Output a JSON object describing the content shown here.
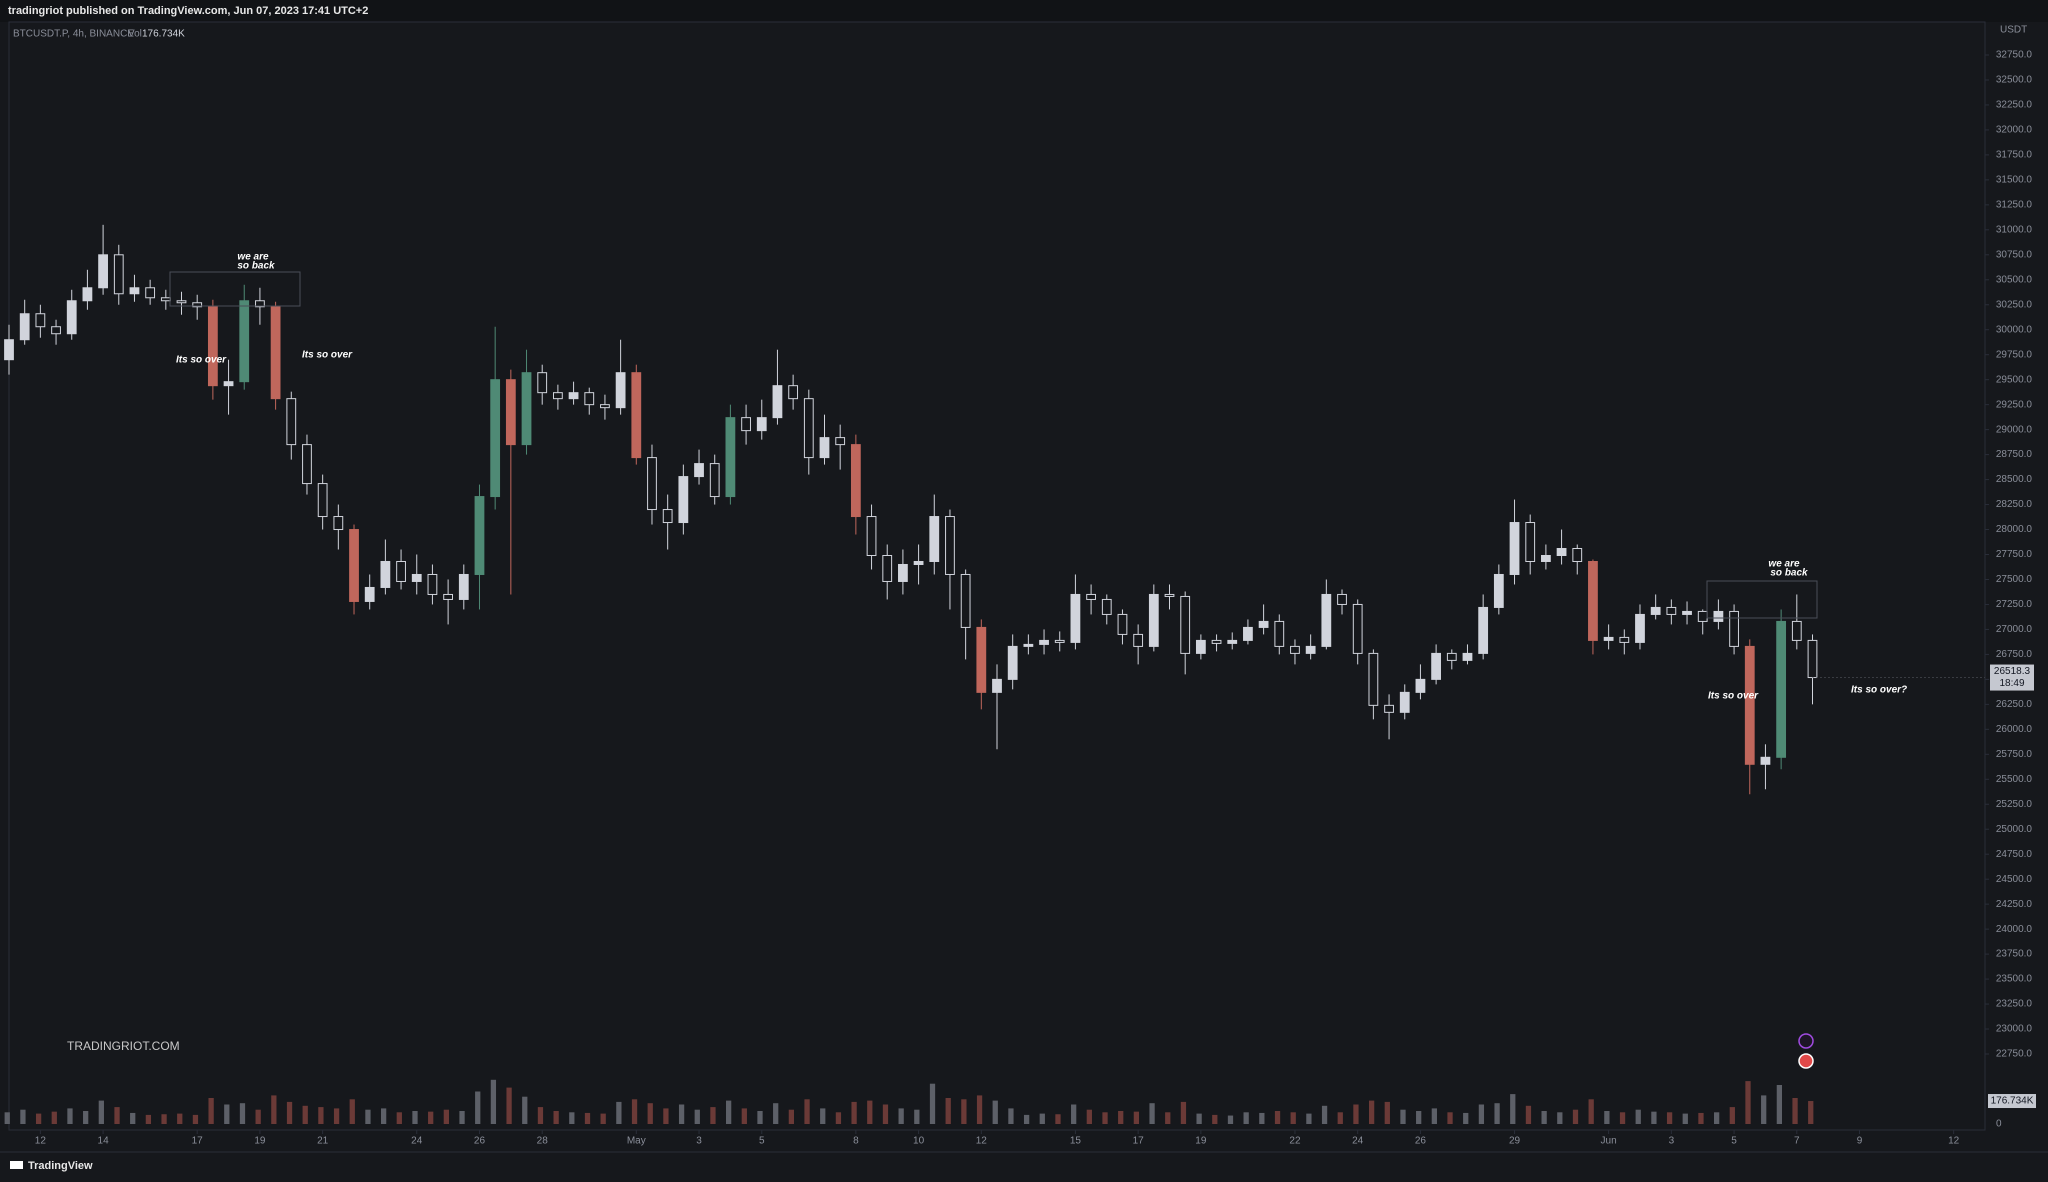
{
  "chart_data": {
    "type": "candlestick",
    "header": "tradingriot published on TradingView.com, Jun 07, 2023 17:41 UTC+2",
    "symbol": "BTCUSDT.P, 4h, BINANCE",
    "volume_title": "Vol",
    "last_volume_label": "176.734K",
    "currency": "USDT",
    "countdown": "18:49",
    "watermark": "TRADINGRIOT.COM",
    "brand": "TradingView",
    "grid": false,
    "up_color": "#d1d4dc",
    "down_color": "#16181c",
    "bull_color": "#4f8a75",
    "bear_color": "#c0675c",
    "x": [
      11,
      11.5,
      12,
      12.5,
      13,
      13.5,
      14,
      14.5,
      15,
      15.5,
      16,
      16.5,
      17,
      17.5,
      18,
      18.5,
      19,
      19.5,
      20,
      20.5,
      21,
      21.5,
      22,
      22.5,
      23,
      23.5,
      24,
      24.5,
      25,
      25.5,
      26,
      26.5,
      27,
      27.5,
      28,
      28.5,
      29,
      29.5,
      30,
      30.5,
      31,
      31.5,
      32,
      32.5,
      33,
      33.5,
      34,
      34.5,
      35,
      35.5,
      36,
      36.5,
      37,
      37.5,
      38,
      38.5,
      39,
      39.5,
      40,
      40.5,
      41,
      41.5,
      42,
      42.5,
      43,
      43.5,
      44,
      44.5,
      45,
      45.5,
      46,
      46.5,
      47,
      47.5,
      48,
      48.5,
      49,
      49.5,
      50,
      50.5,
      51,
      51.5,
      52,
      52.5,
      53,
      53.5,
      54,
      54.5,
      55,
      55.5,
      56,
      56.5,
      57,
      57.5,
      58,
      58.5,
      59,
      59.5,
      60,
      60.5,
      61,
      61.5,
      62,
      62.5,
      63,
      63.5,
      64,
      64.5,
      65,
      65.5,
      66,
      66.5,
      67,
      67.5,
      68,
      68.5
    ],
    "open": [
      29700,
      29900,
      30160,
      30030,
      29960,
      30290,
      30420,
      30750,
      30360,
      30420,
      30320,
      30290,
      30270,
      30230,
      29440,
      29480,
      30290,
      30230,
      29310,
      28850,
      28460,
      28130,
      28000,
      27280,
      27420,
      27680,
      27480,
      27550,
      27350,
      27300,
      27550,
      28330,
      29500,
      28850,
      29570,
      29370,
      29310,
      29370,
      29250,
      29220,
      29570,
      28720,
      28200,
      28070,
      28530,
      28660,
      28330,
      29120,
      28990,
      29120,
      29440,
      29310,
      28720,
      28920,
      28850,
      28130,
      27740,
      27480,
      27650,
      27680,
      28130,
      27550,
      27020,
      26370,
      26500,
      26830,
      26850,
      26890,
      26870,
      27350,
      27300,
      27150,
      26950,
      26830,
      27350,
      27330,
      26760,
      26890,
      26860,
      26890,
      27020,
      27080,
      26830,
      26760,
      26830,
      27350,
      27250,
      26760,
      26240,
      26170,
      26370,
      26500,
      26760,
      26690,
      26760,
      27220,
      27550,
      28070,
      27680,
      27740,
      27810,
      27680,
      26890,
      26920,
      26870,
      27150,
      27220,
      27150,
      27180,
      27080,
      27180,
      26830,
      25650,
      25720,
      27080,
      26890
    ],
    "high": [
      30050,
      30300,
      30250,
      30100,
      30400,
      30600,
      31050,
      30850,
      30550,
      30500,
      30400,
      30380,
      30350,
      30300,
      29700,
      30450,
      30420,
      30280,
      29380,
      28950,
      28550,
      28250,
      28050,
      27550,
      27900,
      27800,
      27750,
      27650,
      27500,
      27650,
      28450,
      30030,
      29600,
      29800,
      29650,
      29450,
      29480,
      29420,
      29350,
      29900,
      29650,
      28850,
      28350,
      28650,
      28800,
      28750,
      29250,
      29250,
      29300,
      29800,
      29550,
      29400,
      29150,
      29050,
      28950,
      28250,
      27850,
      27800,
      27850,
      28350,
      28200,
      27600,
      27100,
      26650,
      26950,
      26950,
      27000,
      26980,
      27550,
      27450,
      27350,
      27200,
      27050,
      27450,
      27450,
      27380,
      26950,
      26950,
      26970,
      27100,
      27250,
      27150,
      26900,
      26950,
      27500,
      27400,
      27300,
      26800,
      26350,
      26450,
      26650,
      26850,
      26800,
      26850,
      27350,
      27650,
      28300,
      28150,
      27850,
      28000,
      27850,
      27700,
      27050,
      27000,
      27250,
      27350,
      27300,
      27280,
      27200,
      27300,
      27250,
      26900,
      25850,
      27200,
      27350,
      26950
    ],
    "low": [
      29550,
      29850,
      29920,
      29850,
      29900,
      30200,
      30350,
      30250,
      30280,
      30250,
      30200,
      30150,
      30100,
      29300,
      29150,
      29400,
      30050,
      29200,
      28700,
      28350,
      28000,
      27800,
      27150,
      27200,
      27350,
      27400,
      27350,
      27250,
      27050,
      27200,
      27200,
      28200,
      27350,
      28750,
      29250,
      29200,
      29250,
      29150,
      29100,
      29150,
      28650,
      28050,
      27800,
      27950,
      28450,
      28250,
      28250,
      28850,
      28900,
      29050,
      29200,
      28550,
      28650,
      28600,
      27950,
      27600,
      27300,
      27350,
      27450,
      27550,
      27200,
      26700,
      26200,
      25800,
      26400,
      26750,
      26750,
      26780,
      26800,
      27150,
      27050,
      26850,
      26650,
      26780,
      27200,
      26550,
      26700,
      26780,
      26800,
      26850,
      26950,
      26750,
      26650,
      26700,
      26800,
      27150,
      26650,
      26100,
      25900,
      26100,
      26300,
      26450,
      26600,
      26650,
      26700,
      27150,
      27450,
      27550,
      27600,
      27650,
      27550,
      26750,
      26800,
      26750,
      26800,
      27100,
      27050,
      27050,
      26950,
      27000,
      26750,
      25350,
      25400,
      25600,
      26800,
      26250
    ],
    "close": [
      29900,
      30160,
      30030,
      29960,
      30290,
      30420,
      30750,
      30360,
      30420,
      30320,
      30290,
      30270,
      30230,
      29440,
      29480,
      30290,
      30230,
      29310,
      28850,
      28460,
      28130,
      28000,
      27280,
      27420,
      27680,
      27480,
      27550,
      27350,
      27300,
      27550,
      28330,
      29500,
      28850,
      29570,
      29370,
      29310,
      29370,
      29250,
      29220,
      29570,
      28720,
      28200,
      28070,
      28530,
      28660,
      28330,
      29120,
      28990,
      29120,
      29440,
      29310,
      28720,
      28920,
      28850,
      28130,
      27740,
      27480,
      27650,
      27680,
      28130,
      27550,
      27020,
      26370,
      26500,
      26830,
      26850,
      26890,
      26870,
      27350,
      27300,
      27150,
      26950,
      26830,
      27350,
      27330,
      26760,
      26890,
      26860,
      26890,
      27020,
      27080,
      26830,
      26760,
      26830,
      27350,
      27250,
      26760,
      26240,
      26170,
      26370,
      26500,
      26760,
      26690,
      26760,
      27220,
      27550,
      28070,
      27680,
      27740,
      27810,
      27680,
      26890,
      26920,
      26870,
      27150,
      27220,
      27150,
      27180,
      27080,
      27180,
      26830,
      25650,
      25720,
      27080,
      26890,
      26518.3
    ],
    "volume": [
      90000,
      110000,
      80000,
      95000,
      120000,
      100000,
      180000,
      130000,
      85000,
      70000,
      75000,
      80000,
      70000,
      200000,
      150000,
      160000,
      110000,
      220000,
      170000,
      140000,
      130000,
      120000,
      190000,
      110000,
      120000,
      90000,
      100000,
      95000,
      110000,
      100000,
      250000,
      340000,
      280000,
      210000,
      130000,
      100000,
      90000,
      85000,
      80000,
      170000,
      190000,
      160000,
      120000,
      150000,
      110000,
      130000,
      180000,
      120000,
      100000,
      160000,
      110000,
      190000,
      120000,
      90000,
      170000,
      180000,
      150000,
      120000,
      110000,
      310000,
      200000,
      190000,
      220000,
      180000,
      120000,
      70000,
      80000,
      75000,
      150000,
      110000,
      90000,
      100000,
      95000,
      160000,
      90000,
      170000,
      80000,
      70000,
      65000,
      90000,
      85000,
      100000,
      90000,
      80000,
      140000,
      90000,
      150000,
      180000,
      170000,
      110000,
      100000,
      120000,
      90000,
      85000,
      150000,
      160000,
      230000,
      140000,
      100000,
      90000,
      110000,
      190000,
      100000,
      90000,
      110000,
      95000,
      90000,
      80000,
      85000,
      90000,
      130000,
      330000,
      220000,
      300000,
      200000,
      176734
    ],
    "xlim": [
      11,
      74
    ],
    "xticks": [
      12,
      14,
      17,
      19,
      21,
      24,
      26,
      28,
      {
        "value": 31,
        "label": "May"
      },
      {
        "value": 33,
        "label": "3"
      },
      {
        "value": 35,
        "label": "5"
      },
      {
        "value": 38,
        "label": "8"
      },
      {
        "value": 40,
        "label": "10"
      },
      {
        "value": 42,
        "label": "12"
      },
      {
        "value": 45,
        "label": "15"
      },
      {
        "value": 47,
        "label": "17"
      },
      {
        "value": 49,
        "label": "19"
      },
      {
        "value": 52,
        "label": "22"
      },
      {
        "value": 54,
        "label": "24"
      },
      {
        "value": 56,
        "label": "26"
      },
      {
        "value": 59,
        "label": "29"
      },
      {
        "value": 62,
        "label": "Jun"
      },
      {
        "value": 64,
        "label": "3"
      },
      {
        "value": 66,
        "label": "5"
      },
      {
        "value": 68,
        "label": "7"
      },
      {
        "value": 70,
        "label": "9"
      },
      {
        "value": 73,
        "label": "12"
      }
    ],
    "ylim": [
      22750,
      32750
    ],
    "yticks": [
      {
        "value": 22750,
        "label": "22750.0"
      },
      {
        "value": 23000,
        "label": "23000.0"
      },
      {
        "value": 23250,
        "label": "23250.0"
      },
      {
        "value": 23500,
        "label": "23500.0"
      },
      {
        "value": 23750,
        "label": "23750.0"
      },
      {
        "value": 24000,
        "label": "24000.0"
      },
      {
        "value": 24250,
        "label": "24250.0"
      },
      {
        "value": 24500,
        "label": "24500.0"
      },
      {
        "value": 24750,
        "label": "24750.0"
      },
      {
        "value": 25000,
        "label": "25000.0"
      },
      {
        "value": 25250,
        "label": "25250.0"
      },
      {
        "value": 25500,
        "label": "25500.0"
      },
      {
        "value": 25750,
        "label": "25750.0"
      },
      {
        "value": 26000,
        "label": "26000.0"
      },
      {
        "value": 26250,
        "label": "26250.0"
      },
      {
        "value": 26500,
        "label": "26500.0"
      },
      {
        "value": 26750,
        "label": "26750.0"
      },
      {
        "value": 27000,
        "label": "27000.0"
      },
      {
        "value": 27250,
        "label": "27250.0"
      },
      {
        "value": 27500,
        "label": "27500.0"
      },
      {
        "value": 27750,
        "label": "27750.0"
      },
      {
        "value": 28000,
        "label": "28000.0"
      },
      {
        "value": 28250,
        "label": "28250.0"
      },
      {
        "value": 28500,
        "label": "28500.0"
      },
      {
        "value": 28750,
        "label": "28750.0"
      },
      {
        "value": 29000,
        "label": "29000.0"
      },
      {
        "value": 29250,
        "label": "29250.0"
      },
      {
        "value": 29500,
        "label": "29500.0"
      },
      {
        "value": 29750,
        "label": "29750.0"
      },
      {
        "value": 30000,
        "label": "30000.0"
      },
      {
        "value": 30250,
        "label": "30250.0"
      },
      {
        "value": 30500,
        "label": "30500.0"
      },
      {
        "value": 30750,
        "label": "30750.0"
      },
      {
        "value": 31000,
        "label": "31000.0"
      },
      {
        "value": 31250,
        "label": "31250.0"
      },
      {
        "value": 31500,
        "label": "31500.0"
      },
      {
        "value": 31750,
        "label": "31750.0"
      },
      {
        "value": 32000,
        "label": "32000.0"
      },
      {
        "value": 32250,
        "label": "32250.0"
      },
      {
        "value": 32500,
        "label": "32500.0"
      },
      {
        "value": 32750,
        "label": "32750.0"
      }
    ],
    "volume_ylim": [
      0,
      800000
    ],
    "volume_yticks": [
      0
    ],
    "annotations": [
      {
        "lines": [
          "we are",
          "so back"
        ]
      },
      {
        "lines": [
          "Its so over"
        ]
      },
      {
        "lines": [
          "Its so over"
        ]
      },
      {
        "lines": [
          "we are",
          "so back"
        ]
      },
      {
        "lines": [
          "Its so over"
        ]
      },
      {
        "lines": [
          "Its so over?"
        ]
      }
    ]
  }
}
